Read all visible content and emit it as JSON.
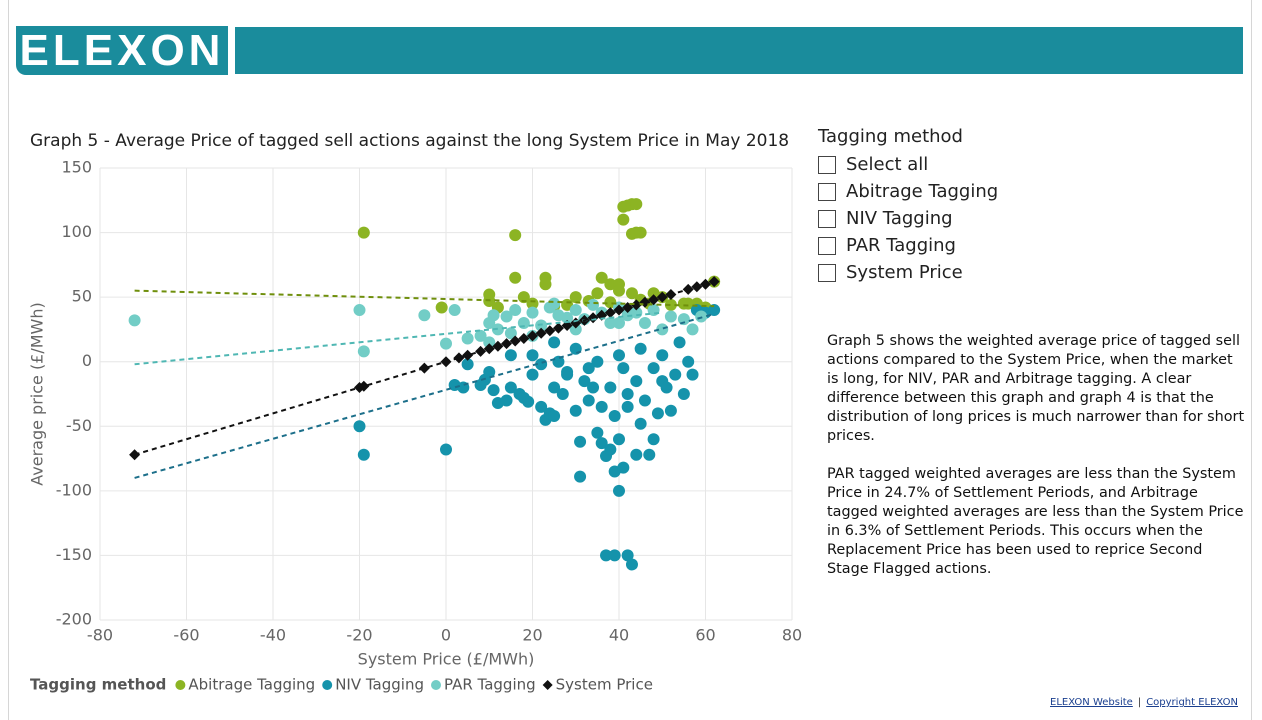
{
  "header": {
    "logo": "ELEXON"
  },
  "chart_data": {
    "type": "scatter",
    "title": "Graph 5 - Average Price of tagged sell actions against the long System Price in May 2018",
    "x_label": "System Price (£/MWh)",
    "y_label": "Average price (£/MWh)",
    "legend_title": "Tagging method",
    "legend": "bottom-left",
    "grid": true,
    "xlim": [
      -80,
      80
    ],
    "xticks": [
      -80,
      -60,
      -40,
      -20,
      0,
      20,
      40,
      60,
      80
    ],
    "ylim": [
      -200,
      150
    ],
    "yticks": [
      -200,
      -150,
      -100,
      -50,
      0,
      50,
      100,
      150
    ],
    "series": [
      {
        "name": "Abitrage Tagging",
        "color": "#8cb423",
        "marker": "circle",
        "x": [
          -19,
          16,
          -1,
          10,
          10,
          16,
          18,
          23,
          23,
          30,
          36,
          38,
          40,
          41,
          42,
          43,
          44,
          41,
          43,
          44,
          45,
          43,
          48,
          50,
          55,
          56,
          60,
          62,
          58,
          52,
          38,
          28,
          25,
          12,
          35,
          40,
          45,
          20,
          33,
          47
        ],
        "values": [
          100,
          98,
          42,
          52,
          47,
          65,
          50,
          65,
          60,
          50,
          65,
          60,
          60,
          120,
          121,
          122,
          122,
          110,
          99,
          100,
          100,
          53,
          53,
          50,
          45,
          45,
          42,
          62,
          45,
          44,
          46,
          44,
          43,
          42,
          53,
          55,
          48,
          45,
          47,
          45
        ],
        "trend": {
          "color": "#6f8f0c",
          "x": [
            -72,
            62
          ],
          "y": [
            55,
            43
          ]
        }
      },
      {
        "name": "NIV Tagging",
        "color": "#1593ab",
        "marker": "circle",
        "x": [
          -20,
          -19,
          0,
          2,
          4,
          5,
          8,
          9,
          10,
          11,
          12,
          14,
          15,
          17,
          18,
          19,
          20,
          22,
          23,
          24,
          25,
          25,
          27,
          28,
          30,
          31,
          31,
          32,
          33,
          34,
          35,
          36,
          37,
          37,
          38,
          39,
          39,
          40,
          40,
          41,
          42,
          42,
          43,
          44,
          45,
          46,
          47,
          48,
          49,
          50,
          51,
          52,
          53,
          54,
          56,
          57,
          58,
          59,
          60,
          62,
          35,
          30,
          20,
          25,
          40,
          45,
          15,
          50,
          38,
          44,
          33,
          28,
          22,
          48,
          42,
          36,
          26,
          55,
          39,
          41
        ],
        "values": [
          -50,
          -72,
          -68,
          -18,
          -20,
          -2,
          -18,
          -14,
          -8,
          -22,
          -32,
          -30,
          -20,
          -25,
          -28,
          -31,
          -10,
          -35,
          -45,
          -40,
          -42,
          -20,
          -25,
          -10,
          -38,
          -62,
          -89,
          -15,
          -30,
          -20,
          -55,
          -63,
          -73,
          -150,
          -68,
          -85,
          -150,
          -60,
          -100,
          -82,
          -150,
          -35,
          -157,
          -72,
          -48,
          -30,
          -72,
          -60,
          -40,
          -15,
          -20,
          -38,
          -10,
          15,
          0,
          -10,
          40,
          38,
          38,
          40,
          0,
          10,
          5,
          15,
          5,
          10,
          5,
          5,
          -20,
          -15,
          -5,
          -8,
          -2,
          -5,
          -25,
          -35,
          0,
          -25,
          -42,
          -5
        ],
        "trend": {
          "color": "#1c6f8a",
          "x": [
            -72,
            62
          ],
          "y": [
            -90,
            37
          ]
        }
      },
      {
        "name": "PAR Tagging",
        "color": "#72cdc6",
        "marker": "circle",
        "x": [
          -72,
          -20,
          -19,
          -5,
          0,
          2,
          5,
          8,
          10,
          11,
          12,
          14,
          15,
          16,
          18,
          20,
          22,
          24,
          26,
          28,
          30,
          32,
          34,
          36,
          38,
          40,
          42,
          44,
          46,
          48,
          50,
          52,
          55,
          57,
          59,
          10,
          20,
          30,
          40,
          25
        ],
        "values": [
          32,
          40,
          8,
          36,
          14,
          40,
          18,
          20,
          30,
          36,
          25,
          35,
          22,
          40,
          30,
          38,
          28,
          42,
          36,
          34,
          40,
          33,
          44,
          38,
          30,
          42,
          36,
          38,
          30,
          40,
          25,
          35,
          33,
          25,
          35,
          15,
          20,
          25,
          30,
          45
        ],
        "trend": {
          "color": "#4fb7b3",
          "x": [
            -72,
            50
          ],
          "y": [
            -2,
            38
          ]
        }
      },
      {
        "name": "System Price",
        "color": "#111111",
        "marker": "diamond",
        "x": [
          -72,
          -20,
          -19,
          -5,
          0,
          3,
          5,
          8,
          10,
          12,
          14,
          16,
          18,
          20,
          22,
          24,
          26,
          28,
          30,
          32,
          34,
          36,
          38,
          40,
          42,
          44,
          46,
          48,
          50,
          52,
          56,
          58,
          60,
          62
        ],
        "values": [
          -72,
          -20,
          -19,
          -5,
          0,
          3,
          5,
          8,
          10,
          12,
          14,
          16,
          18,
          20,
          22,
          24,
          26,
          28,
          30,
          32,
          34,
          36,
          38,
          40,
          42,
          44,
          46,
          48,
          50,
          52,
          56,
          58,
          60,
          62
        ],
        "trend": {
          "color": "#111111",
          "x": [
            -72,
            62
          ],
          "y": [
            -72,
            62
          ]
        }
      }
    ]
  },
  "slicer": {
    "title": "Tagging method",
    "options": [
      "Select all",
      "Abitrage Tagging",
      "NIV Tagging",
      "PAR Tagging",
      "System Price"
    ]
  },
  "description": {
    "paragraphs": [
      "Graph 5 shows the weighted average price of tagged sell actions compared to the System Price, when the market is long, for NIV, PAR and Arbitrage tagging. A clear difference between this graph and graph 4 is that the distribution of long prices is much narrower than for short prices.",
      "PAR tagged weighted averages are less than the System Price in 24.7% of Settlement Periods, and Arbitrage tagged weighted averages are less than the System Price in 6.3% of Settlement Periods. This occurs when the Replacement Price has been used to reprice Second Stage Flagged actions."
    ]
  },
  "footer": {
    "links": [
      "ELEXON Website",
      "Copyright ELEXON"
    ],
    "separator": "|"
  }
}
